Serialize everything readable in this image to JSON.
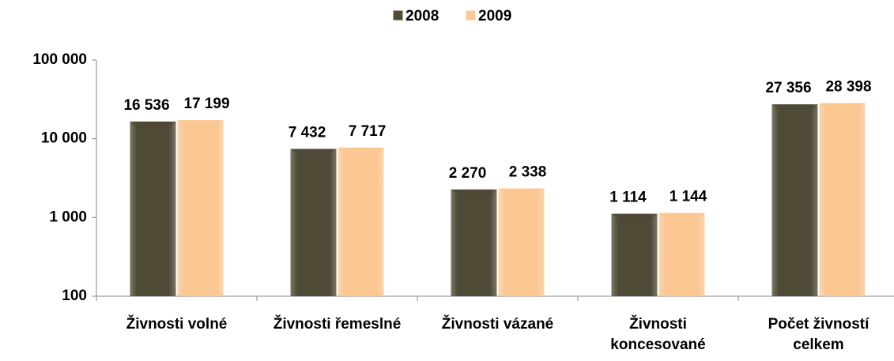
{
  "chart_data": {
    "type": "bar",
    "categories": [
      "Živnosti volné",
      "Živnosti řemeslné",
      "Živnosti vázané",
      "Živnosti koncesované",
      "Počet živností celkem"
    ],
    "series": [
      {
        "name": "2008",
        "color": "#4f4a36",
        "values": [
          16536,
          7432,
          2270,
          1114,
          27356
        ],
        "value_labels": [
          "16 536",
          "7 432",
          "2 270",
          "1 114",
          "27 356"
        ]
      },
      {
        "name": "2009",
        "color": "#fbc793",
        "values": [
          17199,
          7717,
          2338,
          1144,
          28398
        ],
        "value_labels": [
          "17 199",
          "7 717",
          "2 338",
          "1 144",
          "28 398"
        ]
      }
    ],
    "ylim": [
      100,
      100000
    ],
    "yticks": [
      100,
      {
        "value": 1000,
        "label": "1 000"
      },
      {
        "value": 10000,
        "label": "10 000"
      },
      {
        "value": 100000,
        "label": "100 000"
      }
    ],
    "log_scale": true,
    "grid": false,
    "legend": "top"
  }
}
